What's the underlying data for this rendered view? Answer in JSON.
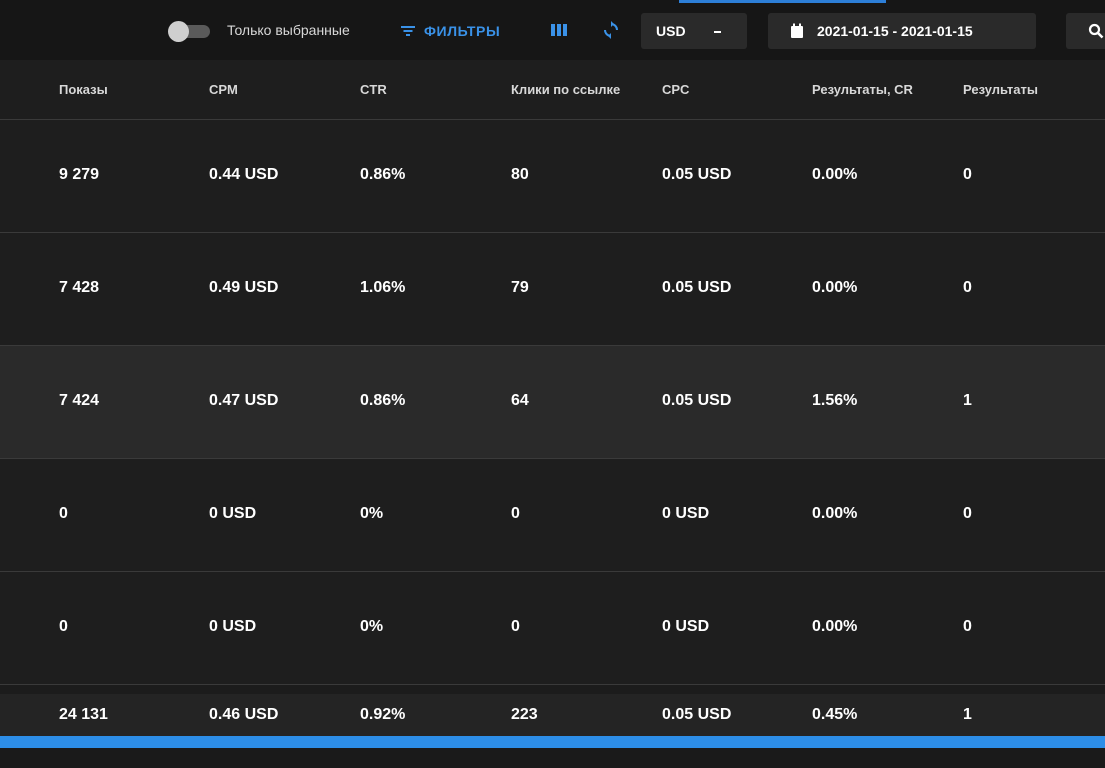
{
  "toolbar": {
    "only_selected_label": "Только выбранные",
    "filters_label": "ФИЛЬТРЫ",
    "currency": "USD",
    "date_range": "2021-01-15 - 2021-01-15",
    "accent_color": "#3a92e8"
  },
  "table": {
    "columns": [
      "Показы",
      "CPM",
      "CTR",
      "Клики по ссылке",
      "CPC",
      "Результаты, CR",
      "Результаты"
    ],
    "rows": [
      [
        "9 279",
        "0.44 USD",
        "0.86%",
        "80",
        "0.05 USD",
        "0.00%",
        "0"
      ],
      [
        "7 428",
        "0.49 USD",
        "1.06%",
        "79",
        "0.05 USD",
        "0.00%",
        "0"
      ],
      [
        "7 424",
        "0.47 USD",
        "0.86%",
        "64",
        "0.05 USD",
        "1.56%",
        "1"
      ],
      [
        "0",
        "0 USD",
        "0%",
        "0",
        "0 USD",
        "0.00%",
        "0"
      ],
      [
        "0",
        "0 USD",
        "0%",
        "0",
        "0 USD",
        "0.00%",
        "0"
      ]
    ],
    "totals": [
      "24 131",
      "0.46 USD",
      "0.92%",
      "223",
      "0.05 USD",
      "0.45%",
      "1"
    ]
  },
  "icons": {
    "filters": "filter-lines-icon",
    "columns": "columns-icon",
    "refresh": "refresh-icon",
    "calendar": "calendar-icon",
    "search": "search-icon"
  }
}
